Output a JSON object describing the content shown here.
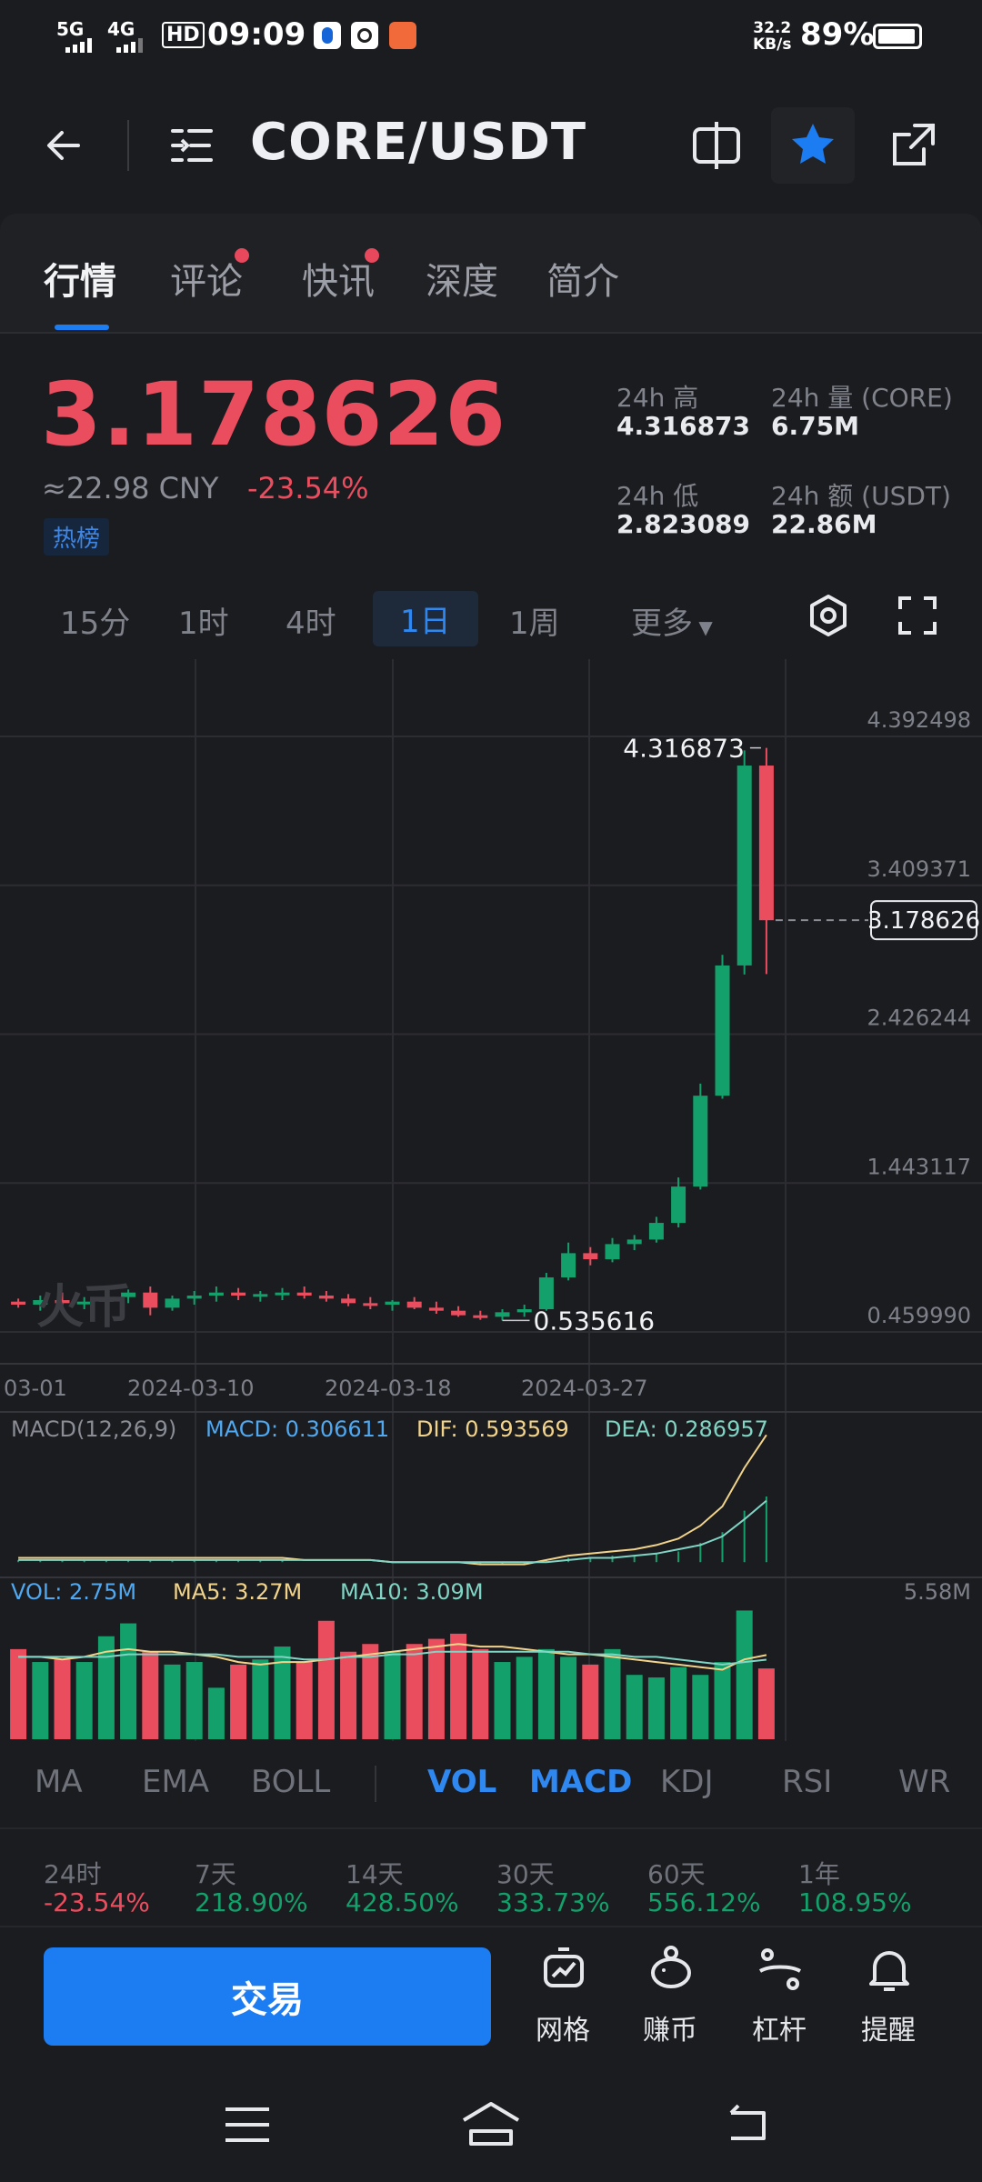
{
  "status_bar": {
    "network1": "5G",
    "network2": "4G",
    "hd": "HD",
    "time": "09:09",
    "speed_value": "32.2",
    "speed_unit": "KB/s",
    "battery": "89%"
  },
  "header": {
    "title": "CORE/USDT",
    "icons": [
      "back-arrow-icon",
      "menu-icon",
      "compare-icon",
      "star-icon",
      "share-icon"
    ]
  },
  "tabs": [
    {
      "label": "行情",
      "active": true,
      "dot": false
    },
    {
      "label": "评论",
      "active": false,
      "dot": true
    },
    {
      "label": "快讯",
      "active": false,
      "dot": true
    },
    {
      "label": "深度",
      "active": false,
      "dot": false
    },
    {
      "label": "简介",
      "active": false,
      "dot": false
    }
  ],
  "ticker": {
    "price": "3.178626",
    "cny": "≈22.98 CNY",
    "change": "-23.54%",
    "badge": "热榜",
    "high_label": "24h 高",
    "high_value": "4.316873",
    "low_label": "24h 低",
    "low_value": "2.823089",
    "vol_label": "24h 量 (CORE)",
    "vol_value": "6.75M",
    "amt_label": "24h 额 (USDT)",
    "amt_value": "22.86M"
  },
  "intervals": [
    {
      "label": "15分",
      "active": false
    },
    {
      "label": "1时",
      "active": false
    },
    {
      "label": "4时",
      "active": false
    },
    {
      "label": "1日",
      "active": true
    },
    {
      "label": "1周",
      "active": false
    },
    {
      "label": "更多",
      "active": false
    }
  ],
  "colors": {
    "up": "#13a06a",
    "down": "#ea4d5e",
    "accent": "#1c7cf2",
    "macd": "#4fa8f0",
    "dif": "#f2d38a",
    "dea": "#7fd4c4"
  },
  "chart_data": {
    "type": "candlestick",
    "price_axis": [
      "4.392498",
      "3.409371",
      "2.426244",
      "1.443117",
      "0.459990"
    ],
    "ylim": [
      0.45999,
      4.392498
    ],
    "date_labels": [
      "03-01",
      "2024-03-10",
      "2024-03-18",
      "2024-03-27"
    ],
    "high_label": "4.316873",
    "low_label": "0.535616",
    "last_price_label": "3.178626",
    "watermark": "火币",
    "candles": [
      {
        "o": 0.66,
        "h": 0.68,
        "l": 0.62,
        "c": 0.64
      },
      {
        "o": 0.64,
        "h": 0.7,
        "l": 0.6,
        "c": 0.67
      },
      {
        "o": 0.67,
        "h": 0.72,
        "l": 0.63,
        "c": 0.65
      },
      {
        "o": 0.65,
        "h": 0.69,
        "l": 0.61,
        "c": 0.66
      },
      {
        "o": 0.66,
        "h": 0.71,
        "l": 0.62,
        "c": 0.69
      },
      {
        "o": 0.69,
        "h": 0.74,
        "l": 0.65,
        "c": 0.72
      },
      {
        "o": 0.72,
        "h": 0.76,
        "l": 0.57,
        "c": 0.62
      },
      {
        "o": 0.62,
        "h": 0.7,
        "l": 0.6,
        "c": 0.68
      },
      {
        "o": 0.68,
        "h": 0.73,
        "l": 0.64,
        "c": 0.7
      },
      {
        "o": 0.7,
        "h": 0.76,
        "l": 0.66,
        "c": 0.72
      },
      {
        "o": 0.72,
        "h": 0.75,
        "l": 0.67,
        "c": 0.7
      },
      {
        "o": 0.7,
        "h": 0.73,
        "l": 0.66,
        "c": 0.71
      },
      {
        "o": 0.71,
        "h": 0.75,
        "l": 0.67,
        "c": 0.72
      },
      {
        "o": 0.72,
        "h": 0.76,
        "l": 0.68,
        "c": 0.7
      },
      {
        "o": 0.7,
        "h": 0.73,
        "l": 0.66,
        "c": 0.68
      },
      {
        "o": 0.68,
        "h": 0.71,
        "l": 0.63,
        "c": 0.65
      },
      {
        "o": 0.65,
        "h": 0.69,
        "l": 0.61,
        "c": 0.64
      },
      {
        "o": 0.64,
        "h": 0.67,
        "l": 0.6,
        "c": 0.66
      },
      {
        "o": 0.66,
        "h": 0.69,
        "l": 0.61,
        "c": 0.62
      },
      {
        "o": 0.62,
        "h": 0.66,
        "l": 0.58,
        "c": 0.6
      },
      {
        "o": 0.6,
        "h": 0.63,
        "l": 0.56,
        "c": 0.57
      },
      {
        "o": 0.57,
        "h": 0.6,
        "l": 0.54,
        "c": 0.56
      },
      {
        "o": 0.56,
        "h": 0.61,
        "l": 0.535616,
        "c": 0.59
      },
      {
        "o": 0.59,
        "h": 0.64,
        "l": 0.56,
        "c": 0.61
      },
      {
        "o": 0.61,
        "h": 0.85,
        "l": 0.6,
        "c": 0.82
      },
      {
        "o": 0.82,
        "h": 1.05,
        "l": 0.8,
        "c": 0.98
      },
      {
        "o": 0.98,
        "h": 1.02,
        "l": 0.9,
        "c": 0.94
      },
      {
        "o": 0.94,
        "h": 1.08,
        "l": 0.92,
        "c": 1.04
      },
      {
        "o": 1.04,
        "h": 1.1,
        "l": 1.0,
        "c": 1.07
      },
      {
        "o": 1.07,
        "h": 1.22,
        "l": 1.05,
        "c": 1.18
      },
      {
        "o": 1.18,
        "h": 1.48,
        "l": 1.15,
        "c": 1.42
      },
      {
        "o": 1.42,
        "h": 2.1,
        "l": 1.4,
        "c": 2.02
      },
      {
        "o": 2.02,
        "h": 2.95,
        "l": 2.0,
        "c": 2.88
      },
      {
        "o": 2.88,
        "h": 4.3,
        "l": 2.82,
        "c": 4.2
      },
      {
        "o": 4.2,
        "h": 4.316873,
        "l": 2.823089,
        "c": 3.178626
      }
    ],
    "macd": {
      "label": "MACD(12,26,9)",
      "macd_label": "MACD: 0.306611",
      "dif_label": "DIF: 0.593569",
      "dea_label": "DEA: 0.286957",
      "dif": [
        0.02,
        0.02,
        0.02,
        0.02,
        0.02,
        0.02,
        0.02,
        0.02,
        0.02,
        0.02,
        0.02,
        0.02,
        0.02,
        0.01,
        0.01,
        0.01,
        0.01,
        0.0,
        0.0,
        0.0,
        0.0,
        -0.01,
        -0.01,
        -0.01,
        0.01,
        0.03,
        0.04,
        0.05,
        0.06,
        0.08,
        0.11,
        0.17,
        0.26,
        0.44,
        0.593569
      ],
      "dea": [
        0.01,
        0.01,
        0.01,
        0.01,
        0.01,
        0.01,
        0.01,
        0.01,
        0.01,
        0.01,
        0.01,
        0.01,
        0.01,
        0.01,
        0.01,
        0.01,
        0.01,
        0.0,
        0.0,
        0.0,
        0.0,
        0.0,
        0.0,
        0.0,
        0.0,
        0.01,
        0.02,
        0.02,
        0.03,
        0.04,
        0.06,
        0.08,
        0.12,
        0.2,
        0.286957
      ],
      "hist": [
        0.01,
        0.01,
        0.01,
        0.01,
        0.01,
        0.01,
        0.01,
        0.01,
        0.01,
        0.01,
        0.01,
        0.01,
        0.01,
        0.0,
        0.0,
        0.0,
        0.0,
        0.0,
        0.0,
        0.0,
        0.0,
        -0.01,
        -0.01,
        -0.01,
        0.01,
        0.02,
        0.02,
        0.03,
        0.03,
        0.04,
        0.05,
        0.09,
        0.14,
        0.24,
        0.306611
      ]
    },
    "volume": {
      "vol_label": "VOL: 2.75M",
      "ma5_label": "MA5: 3.27M",
      "ma10_label": "MA10: 3.09M",
      "axis_max": "5.58M",
      "values": [
        3.5,
        3.0,
        3.1,
        3.0,
        4.0,
        4.5,
        3.4,
        2.9,
        3.0,
        2.0,
        2.9,
        3.1,
        3.6,
        3.0,
        4.6,
        3.4,
        3.7,
        3.4,
        3.7,
        3.9,
        4.1,
        3.5,
        3.0,
        3.2,
        3.5,
        3.2,
        2.9,
        3.5,
        2.5,
        2.4,
        2.8,
        2.5,
        3.0,
        5.0,
        2.75
      ],
      "ma5": [
        3.2,
        3.2,
        3.1,
        3.2,
        3.4,
        3.5,
        3.4,
        3.4,
        3.3,
        3.2,
        3.0,
        2.9,
        3.0,
        3.0,
        3.1,
        3.2,
        3.3,
        3.4,
        3.5,
        3.6,
        3.7,
        3.6,
        3.6,
        3.5,
        3.4,
        3.3,
        3.3,
        3.2,
        3.1,
        3.0,
        2.9,
        2.8,
        2.7,
        3.1,
        3.27
      ],
      "ma10": [
        3.2,
        3.2,
        3.2,
        3.2,
        3.2,
        3.3,
        3.3,
        3.3,
        3.3,
        3.3,
        3.2,
        3.2,
        3.2,
        3.1,
        3.1,
        3.2,
        3.2,
        3.3,
        3.3,
        3.4,
        3.4,
        3.4,
        3.4,
        3.4,
        3.4,
        3.4,
        3.3,
        3.3,
        3.2,
        3.2,
        3.1,
        3.0,
        2.9,
        3.0,
        3.09
      ]
    }
  },
  "indicators": [
    {
      "label": "MA",
      "on": false
    },
    {
      "label": "EMA",
      "on": false
    },
    {
      "label": "BOLL",
      "on": false
    },
    {
      "label": "VOL",
      "on": true
    },
    {
      "label": "MACD",
      "on": true
    },
    {
      "label": "KDJ",
      "on": false
    },
    {
      "label": "RSI",
      "on": false
    },
    {
      "label": "WR",
      "on": false
    }
  ],
  "performance": [
    {
      "label": "24时",
      "value": "-23.54%",
      "up": false
    },
    {
      "label": "7天",
      "value": "218.90%",
      "up": true
    },
    {
      "label": "14天",
      "value": "428.50%",
      "up": true
    },
    {
      "label": "30天",
      "value": "333.73%",
      "up": true
    },
    {
      "label": "60天",
      "value": "556.12%",
      "up": true
    },
    {
      "label": "1年",
      "value": "108.95%",
      "up": true
    }
  ],
  "bottom": {
    "trade_label": "交易",
    "actions": [
      {
        "label": "网格",
        "icon": "grid-bot-icon"
      },
      {
        "label": "赚币",
        "icon": "piggy-bank-icon"
      },
      {
        "label": "杠杆",
        "icon": "leverage-icon"
      },
      {
        "label": "提醒",
        "icon": "bell-icon"
      }
    ]
  }
}
